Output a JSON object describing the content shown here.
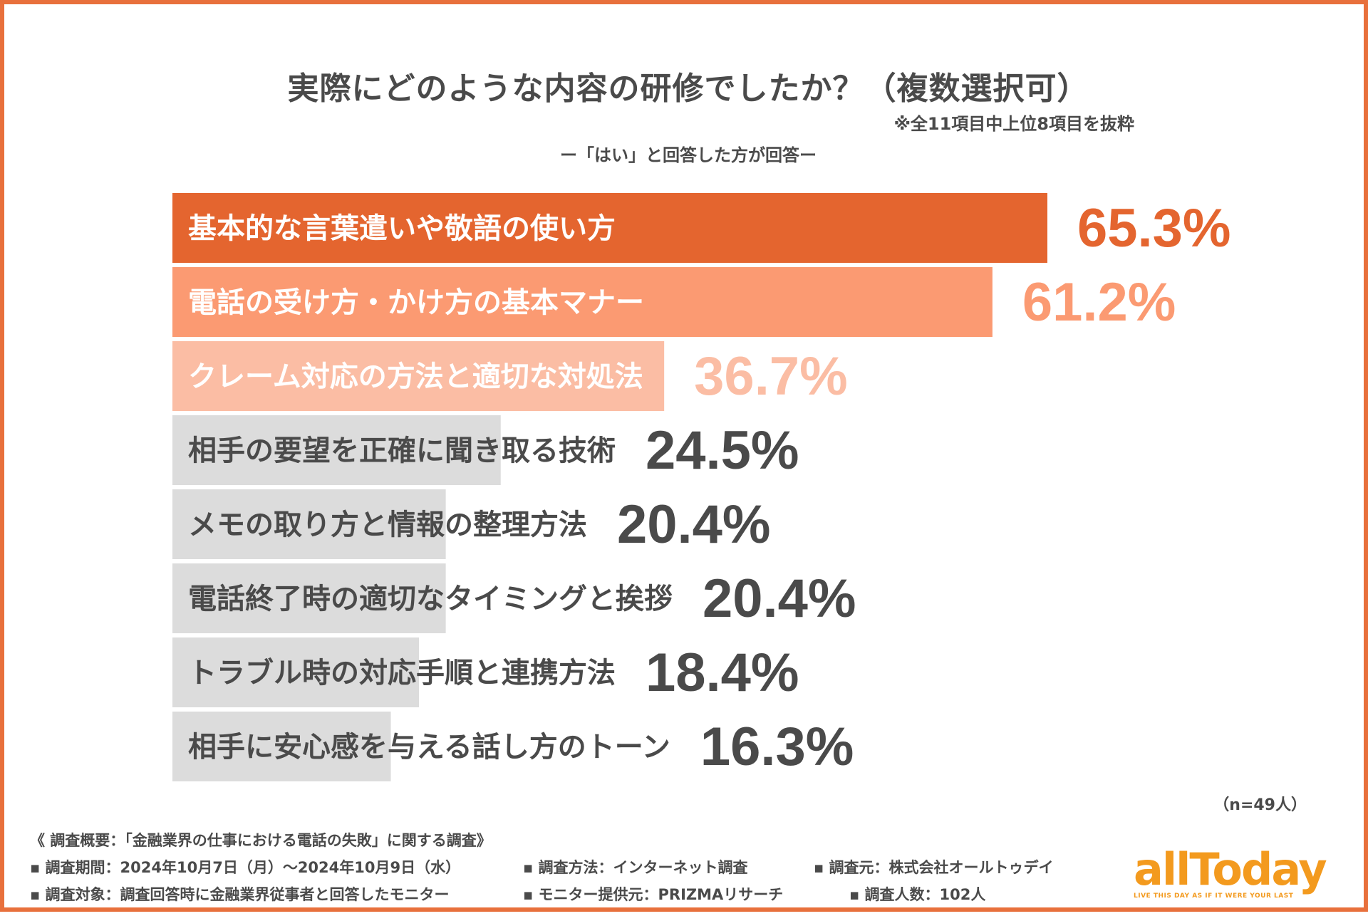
{
  "title": "実際にどのような内容の研修でしたか？（複数選択可）",
  "note": "※全11項目中上位8項目を抜粋",
  "subtitle": "ー「はい」と回答した方が回答ー",
  "sample": "（n=49人）",
  "colors": {
    "frame": "#e8703c",
    "bar_1": "#e4652f",
    "bar_2": "#fb9a72",
    "bar_3": "#fbbda4",
    "bar_other": "#dcdcdc",
    "value_dark": "#4a4a4a",
    "logo": "#f39a1e"
  },
  "chart_data": {
    "type": "bar",
    "orientation": "horizontal",
    "title": "実際にどのような内容の研修でしたか？（複数選択可）",
    "xlabel": "",
    "ylabel": "",
    "xlim": [
      0,
      100
    ],
    "categories": [
      "基本的な言葉遣いや敬語の使い方",
      "電話の受け方・かけ方の基本マナー",
      "クレーム対応の方法と適切な対処法",
      "相手の要望を正確に聞き取る技術",
      "メモの取り方と情報の整理方法",
      "電話終了時の適切なタイミングと挨拶",
      "トラブル時の対応手順と連携方法",
      "相手に安心感を与える話し方のトーン"
    ],
    "values": [
      65.3,
      61.2,
      36.7,
      24.5,
      20.4,
      20.4,
      18.4,
      16.3
    ],
    "value_labels": [
      "65.3%",
      "61.2%",
      "36.7%",
      "24.5%",
      "20.4%",
      "20.4%",
      "18.4%",
      "16.3%"
    ]
  },
  "survey": {
    "heading": "《 調査概要：「金融業界の仕事における電話の失敗」に関する調査》",
    "period": "▪ 調査期間：2024年10月7日（月）〜2024年10月9日（水）",
    "method": "▪ 調査方法：インターネット調査",
    "source": "▪ 調査元：株式会社オールトゥデイ",
    "target": "▪ 調査対象：調査回答時に金融業界従事者と回答したモニター",
    "provider": "▪ モニター提供元：PRIZMAリサーチ",
    "count": "▪ 調査人数：102人"
  },
  "logo": {
    "text": "allToday",
    "tagline": "LIVE THIS DAY AS IF IT WERE YOUR LAST"
  }
}
